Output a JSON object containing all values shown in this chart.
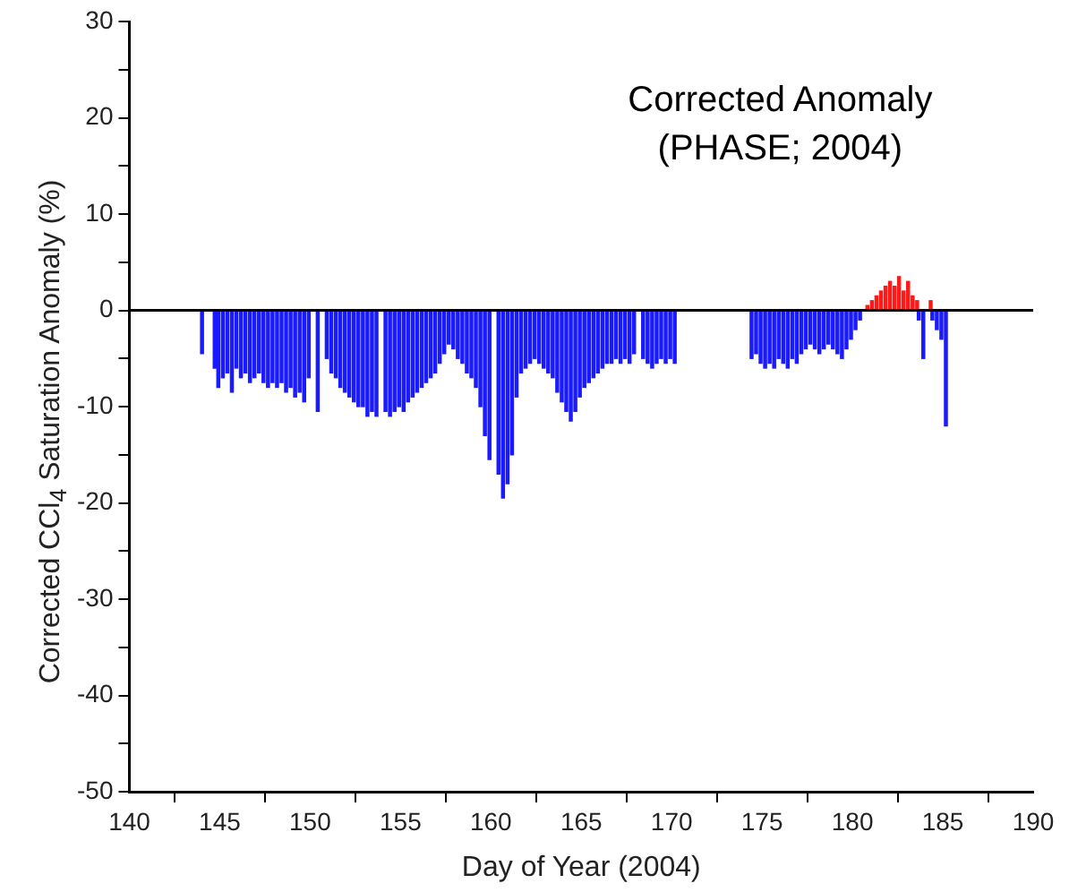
{
  "chart_data": {
    "type": "bar",
    "xlabel": "Day of Year (2004)",
    "ylabel": "Corrected CCl$_{4}$ Saturation Anomaly (%)",
    "annotations": [
      "Corrected Anomaly",
      "(PHASE; 2004)"
    ],
    "xlim": [
      140,
      190
    ],
    "xticks": [
      140,
      145,
      150,
      155,
      160,
      165,
      170,
      175,
      180,
      185,
      190
    ],
    "ylim": [
      -50,
      30
    ],
    "yticks": [
      -50,
      {
        "value": -45,
        "label": null
      },
      -40,
      {
        "value": -35,
        "label": null
      },
      -30,
      {
        "value": -25,
        "label": null
      },
      -20,
      {
        "value": -15,
        "label": null
      },
      -10,
      {
        "value": -5,
        "label": null
      },
      0,
      {
        "value": 5,
        "label": null
      },
      10,
      {
        "value": 15,
        "label": null
      },
      20,
      {
        "value": 25,
        "label": null
      },
      30
    ],
    "grid": false,
    "legend": false,
    "ref_lines": [
      {
        "axis": "y",
        "value": 0,
        "color": "#000000"
      }
    ],
    "series": [
      {
        "color": "#1a1aff",
        "x": [
          144.1,
          144.8,
          145.0,
          145.25,
          145.5,
          145.75,
          146.0,
          146.25,
          146.5,
          146.75,
          147.0,
          147.25,
          147.5,
          147.75,
          148.0,
          148.25,
          148.5,
          148.75,
          149.0,
          149.25,
          149.5,
          149.75,
          150.0,
          150.5,
          151.0,
          151.25,
          151.5,
          151.75,
          152.0,
          152.25,
          152.5,
          152.75,
          153.0,
          153.25,
          153.5,
          153.75,
          154.25,
          154.5,
          154.75,
          155.0,
          155.25,
          155.5,
          155.75,
          156.0,
          156.25,
          156.5,
          156.75,
          157.0,
          157.25,
          157.5,
          157.75,
          158.0,
          158.25,
          158.5,
          158.75,
          159.0,
          159.25,
          159.5,
          159.75,
          160.0,
          160.5,
          160.75,
          161.0,
          161.25,
          161.5,
          161.75,
          162.0,
          162.25,
          162.5,
          162.75,
          163.0,
          163.25,
          163.5,
          163.75,
          164.0,
          164.25,
          164.5,
          164.75,
          165.0,
          165.25,
          165.5,
          165.75,
          166.0,
          166.25,
          166.5,
          166.75,
          167.0,
          167.25,
          167.5,
          167.75,
          168.0,
          168.5,
          168.75,
          169.0,
          169.25,
          169.5,
          169.75,
          170.0,
          170.25,
          174.5,
          174.75,
          175.0,
          175.25,
          175.5,
          175.75,
          176.0,
          176.25,
          176.5,
          176.75,
          177.0,
          177.25,
          177.5,
          177.75,
          178.0,
          178.25,
          178.5,
          178.75,
          179.0,
          179.25,
          179.5,
          179.75,
          180.0,
          180.25,
          180.5,
          183.75,
          184.0,
          184.5,
          184.75,
          185.0,
          185.25
        ],
        "values": [
          -4.5,
          -6,
          -8,
          -7,
          -6.5,
          -8.5,
          -6,
          -7,
          -6.5,
          -7.5,
          -7,
          -6.5,
          -7.5,
          -8,
          -7.5,
          -8,
          -7.5,
          -8.5,
          -8,
          -9,
          -8.5,
          -9.5,
          -7,
          -10.5,
          -5,
          -6.5,
          -7,
          -8,
          -8.5,
          -9,
          -9.5,
          -10,
          -10,
          -11,
          -10.5,
          -11,
          -10.5,
          -11,
          -10.5,
          -10,
          -10.5,
          -9.5,
          -9,
          -8.5,
          -8,
          -7.5,
          -7,
          -6.5,
          -5.5,
          -4.5,
          -3.5,
          -4,
          -5,
          -5.5,
          -6.5,
          -7,
          -8,
          -10,
          -13,
          -15.5,
          -17,
          -19.5,
          -18,
          -15,
          -9,
          -6.5,
          -6,
          -5.5,
          -5,
          -5.5,
          -6,
          -6.5,
          -7,
          -8.5,
          -9.5,
          -10.5,
          -11.5,
          -10.5,
          -9,
          -8,
          -7.5,
          -7,
          -6.5,
          -6,
          -5.5,
          -5.5,
          -5,
          -5.5,
          -5,
          -5.5,
          -4.5,
          -5,
          -5.5,
          -6,
          -5.5,
          -5,
          -5.5,
          -5,
          -5.5,
          -5,
          -4.5,
          -5.5,
          -6,
          -5.5,
          -6,
          -5,
          -5.5,
          -6,
          -5,
          -5.5,
          -4.5,
          -4,
          -3.5,
          -4,
          -4.5,
          -4,
          -3.5,
          -4,
          -4.5,
          -5,
          -4,
          -3,
          -2,
          -1,
          -1,
          -5,
          -1,
          -2,
          -3,
          -12
        ]
      },
      {
        "color": "#ff1a1a",
        "x": [
          180.75,
          181.0,
          181.25,
          181.5,
          181.75,
          182.0,
          182.25,
          182.5,
          182.75,
          183.0,
          183.25,
          183.5,
          184.25
        ],
        "values": [
          0.5,
          1,
          1.5,
          2,
          2.5,
          3,
          2.5,
          3.5,
          2,
          3,
          1.5,
          1,
          1
        ]
      }
    ]
  }
}
